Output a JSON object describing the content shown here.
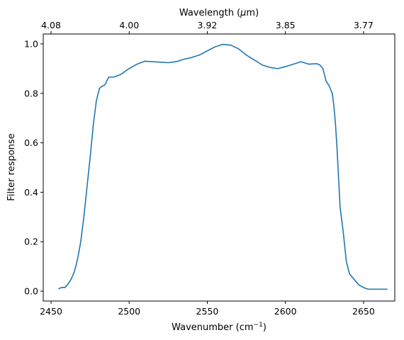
{
  "chart_data": {
    "type": "line",
    "xlabel": "Wavenumber (cm",
    "xlabel_sup": "−1",
    "xlabel_suffix": ")",
    "ylabel": "Filter response",
    "top_xlabel": "Wavelength (",
    "top_xlabel_mu": "μ",
    "top_xlabel_suffix": "m)",
    "xlim": [
      2445,
      2670
    ],
    "ylim": [
      -0.04,
      1.04
    ],
    "grid": false,
    "line_color": "#1f77b4",
    "x_ticks": [
      2450,
      2500,
      2550,
      2600,
      2650
    ],
    "x_tick_labels": [
      "2450",
      "2500",
      "2550",
      "2600",
      "2650"
    ],
    "y_ticks": [
      0.0,
      0.2,
      0.4,
      0.6,
      0.8,
      1.0
    ],
    "y_tick_labels": [
      "0.0",
      "0.2",
      "0.4",
      "0.6",
      "0.8",
      "1.0"
    ],
    "top_ticks_wavenumber": [
      2450,
      2500,
      2550,
      2600,
      2650
    ],
    "top_tick_labels": [
      "4.08",
      "4.00",
      "3.92",
      "3.85",
      "3.77"
    ],
    "series": [
      {
        "x": [
          2455,
          2457,
          2459,
          2461,
          2463,
          2465,
          2467,
          2469,
          2471,
          2473,
          2475,
          2477,
          2479,
          2481,
          2483,
          2484,
          2485,
          2486,
          2487,
          2488,
          2490,
          2491,
          2492,
          2494,
          2496,
          2498,
          2500,
          2505,
          2510,
          2515,
          2520,
          2525,
          2530,
          2535,
          2540,
          2545,
          2550,
          2555,
          2560,
          2565,
          2570,
          2575,
          2580,
          2582,
          2585,
          2590,
          2595,
          2600,
          2605,
          2610,
          2615,
          2620,
          2622,
          2624,
          2626,
          2628,
          2630,
          2631,
          2632,
          2633,
          2634,
          2635,
          2637,
          2639,
          2641,
          2643,
          2645,
          2647,
          2649,
          2651,
          2653,
          2655,
          2657,
          2659,
          2661,
          2663,
          2665
        ],
        "y": [
          0.01,
          0.015,
          0.015,
          0.03,
          0.05,
          0.08,
          0.13,
          0.2,
          0.3,
          0.42,
          0.54,
          0.67,
          0.77,
          0.82,
          0.83,
          0.832,
          0.84,
          0.855,
          0.865,
          0.866,
          0.866,
          0.868,
          0.87,
          0.875,
          0.882,
          0.892,
          0.9,
          0.918,
          0.93,
          0.928,
          0.926,
          0.924,
          0.928,
          0.938,
          0.945,
          0.955,
          0.972,
          0.988,
          0.998,
          0.995,
          0.98,
          0.955,
          0.935,
          0.928,
          0.915,
          0.905,
          0.9,
          0.908,
          0.918,
          0.928,
          0.918,
          0.92,
          0.915,
          0.9,
          0.85,
          0.83,
          0.8,
          0.75,
          0.68,
          0.58,
          0.46,
          0.34,
          0.24,
          0.12,
          0.07,
          0.055,
          0.04,
          0.025,
          0.018,
          0.012,
          0.008,
          0.008,
          0.008,
          0.008,
          0.008,
          0.008,
          0.008
        ]
      }
    ]
  }
}
